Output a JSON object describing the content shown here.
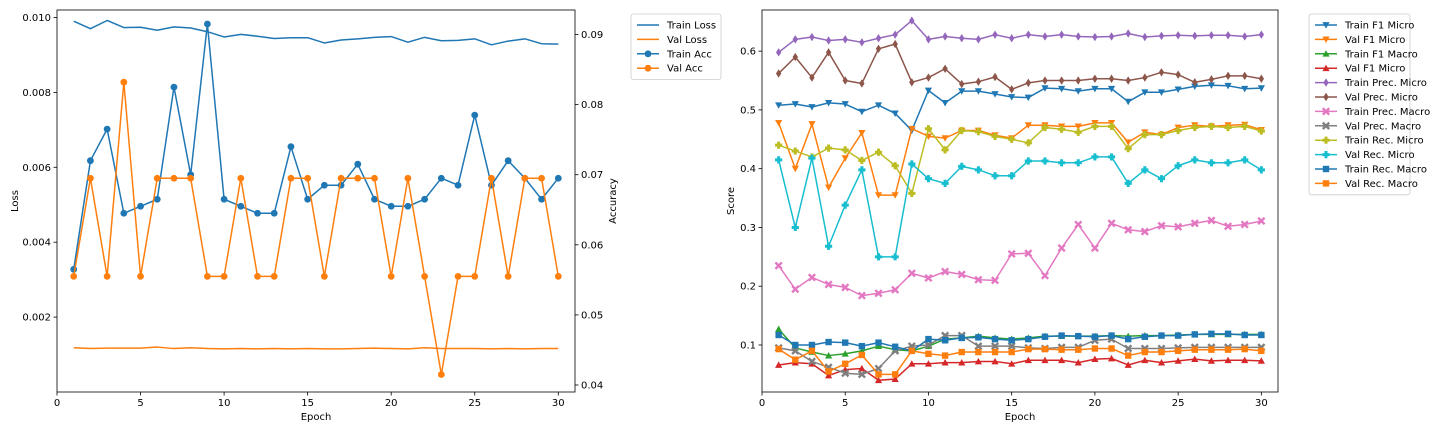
{
  "chart_data": [
    {
      "type": "line",
      "xlabel": "Epoch",
      "ylabel": "Loss",
      "y2label": "Accuracy",
      "xlim": [
        0,
        31
      ],
      "ylim": [
        0,
        0.0102
      ],
      "y2lim": [
        0.039,
        0.0935
      ],
      "xticks": [
        0,
        5,
        10,
        15,
        20,
        25,
        30
      ],
      "yticks": [
        0.002,
        0.004,
        0.006,
        0.008,
        0.01
      ],
      "ytick_labels": [
        "0.002",
        "0.004",
        "0.006",
        "0.008",
        "0.010"
      ],
      "y2ticks": [
        0.04,
        0.05,
        0.06,
        0.07,
        0.08,
        0.09
      ],
      "y2tick_labels": [
        "0.04",
        "0.05",
        "0.06",
        "0.07",
        "0.08",
        "0.09"
      ],
      "grid": false,
      "legend_position": "outside-top-right",
      "x": [
        1,
        2,
        3,
        4,
        5,
        6,
        7,
        8,
        9,
        10,
        11,
        12,
        13,
        14,
        15,
        16,
        17,
        18,
        19,
        20,
        21,
        22,
        23,
        24,
        25,
        26,
        27,
        28,
        29,
        30
      ],
      "series": [
        {
          "name": "Train Loss",
          "axis": "left",
          "marker": "none",
          "color": "#1f77b4",
          "values": [
            0.0099,
            0.0097,
            0.00992,
            0.00973,
            0.00974,
            0.00966,
            0.00975,
            0.00972,
            0.00962,
            0.00948,
            0.00955,
            0.0095,
            0.00944,
            0.00946,
            0.00946,
            0.00932,
            0.0094,
            0.00943,
            0.00947,
            0.00949,
            0.00934,
            0.00947,
            0.00938,
            0.00939,
            0.00943,
            0.00927,
            0.00937,
            0.00943,
            0.0093,
            0.00929
          ]
        },
        {
          "name": "Val Loss",
          "axis": "left",
          "marker": "none",
          "color": "#ff7f0e",
          "values": [
            0.00118,
            0.00116,
            0.00117,
            0.00117,
            0.00117,
            0.0012,
            0.00116,
            0.00118,
            0.00116,
            0.00115,
            0.00116,
            0.00115,
            0.00116,
            0.00115,
            0.00116,
            0.00115,
            0.00115,
            0.00116,
            0.00117,
            0.00116,
            0.00115,
            0.00118,
            0.00116,
            0.00116,
            0.00116,
            0.00115,
            0.00116,
            0.00115,
            0.00116,
            0.00116
          ]
        },
        {
          "name": "Train Acc",
          "axis": "right",
          "marker": "circle",
          "color": "#1f77b4",
          "values": [
            0.0565,
            0.072,
            0.0765,
            0.0645,
            0.0655,
            0.0665,
            0.0825,
            0.07,
            0.0915,
            0.0665,
            0.0655,
            0.0645,
            0.0645,
            0.074,
            0.0665,
            0.0685,
            0.0685,
            0.0715,
            0.0665,
            0.0655,
            0.0655,
            0.0665,
            0.0695,
            0.0685,
            0.0785,
            0.0685,
            0.072,
            0.0695,
            0.0665,
            0.0695
          ]
        },
        {
          "name": "Val Acc",
          "axis": "right",
          "marker": "circle",
          "color": "#ff7f0e",
          "values": [
            0.0555,
            0.0695,
            0.0555,
            0.0832,
            0.0555,
            0.0695,
            0.0695,
            0.0695,
            0.0555,
            0.0555,
            0.0695,
            0.0555,
            0.0555,
            0.0695,
            0.0695,
            0.0555,
            0.0695,
            0.0695,
            0.0695,
            0.0555,
            0.0695,
            0.0555,
            0.0415,
            0.0555,
            0.0555,
            0.0695,
            0.0555,
            0.0695,
            0.0695,
            0.0555
          ]
        }
      ]
    },
    {
      "type": "line",
      "xlabel": "Epoch",
      "ylabel": "Score",
      "xlim": [
        0,
        31
      ],
      "ylim": [
        0.02,
        0.67
      ],
      "xticks": [
        0,
        5,
        10,
        15,
        20,
        25,
        30
      ],
      "yticks": [
        0.1,
        0.2,
        0.3,
        0.4,
        0.5,
        0.6
      ],
      "ytick_labels": [
        "0.1",
        "0.2",
        "0.3",
        "0.4",
        "0.5",
        "0.6"
      ],
      "grid": false,
      "legend_position": "outside-top-right",
      "x": [
        1,
        2,
        3,
        4,
        5,
        6,
        7,
        8,
        9,
        10,
        11,
        12,
        13,
        14,
        15,
        16,
        17,
        18,
        19,
        20,
        21,
        22,
        23,
        24,
        25,
        26,
        27,
        28,
        29,
        30
      ],
      "series": [
        {
          "name": "Train F1 Micro",
          "marker": "triangle-down",
          "color": "#1f77b4",
          "values": [
            0.508,
            0.51,
            0.505,
            0.512,
            0.51,
            0.497,
            0.508,
            0.494,
            0.465,
            0.533,
            0.512,
            0.532,
            0.532,
            0.527,
            0.522,
            0.521,
            0.537,
            0.536,
            0.532,
            0.536,
            0.536,
            0.514,
            0.53,
            0.53,
            0.535,
            0.54,
            0.542,
            0.541,
            0.536,
            0.537
          ]
        },
        {
          "name": "Val F1 Micro",
          "marker": "triangle-down",
          "color": "#ff7f0e",
          "values": [
            0.478,
            0.4,
            0.476,
            0.368,
            0.418,
            0.461,
            0.355,
            0.355,
            0.468,
            0.455,
            0.452,
            0.465,
            0.465,
            0.457,
            0.452,
            0.474,
            0.474,
            0.472,
            0.472,
            0.478,
            0.478,
            0.445,
            0.462,
            0.458,
            0.47,
            0.474,
            0.472,
            0.474,
            0.475,
            0.466
          ]
        },
        {
          "name": "Train F1 Macro",
          "marker": "triangle-up",
          "color": "#2ca02c",
          "values": [
            0.127,
            0.095,
            0.088,
            0.082,
            0.085,
            0.09,
            0.098,
            0.092,
            0.09,
            0.098,
            0.11,
            0.112,
            0.115,
            0.112,
            0.11,
            0.112,
            0.115,
            0.115,
            0.115,
            0.115,
            0.116,
            0.115,
            0.116,
            0.116,
            0.117,
            0.118,
            0.118,
            0.118,
            0.118,
            0.118
          ]
        },
        {
          "name": "Val F1 Micro",
          "marker": "triangle-up",
          "color": "#d62728",
          "values": [
            0.066,
            0.07,
            0.068,
            0.048,
            0.058,
            0.06,
            0.04,
            0.042,
            0.068,
            0.068,
            0.07,
            0.07,
            0.072,
            0.072,
            0.068,
            0.074,
            0.074,
            0.074,
            0.07,
            0.076,
            0.077,
            0.066,
            0.074,
            0.07,
            0.073,
            0.076,
            0.073,
            0.074,
            0.074,
            0.073
          ]
        },
        {
          "name": "Train Prec. Micro",
          "marker": "diamond",
          "color": "#9467bd",
          "values": [
            0.598,
            0.62,
            0.624,
            0.618,
            0.62,
            0.615,
            0.622,
            0.628,
            0.652,
            0.62,
            0.625,
            0.622,
            0.62,
            0.628,
            0.622,
            0.628,
            0.625,
            0.628,
            0.625,
            0.624,
            0.625,
            0.63,
            0.624,
            0.626,
            0.627,
            0.626,
            0.627,
            0.627,
            0.625,
            0.628
          ]
        },
        {
          "name": "Val Prec. Micro",
          "marker": "diamond",
          "color": "#8c564b",
          "values": [
            0.562,
            0.59,
            0.555,
            0.598,
            0.55,
            0.545,
            0.604,
            0.612,
            0.547,
            0.555,
            0.57,
            0.544,
            0.548,
            0.556,
            0.535,
            0.546,
            0.55,
            0.55,
            0.55,
            0.553,
            0.553,
            0.55,
            0.555,
            0.564,
            0.56,
            0.547,
            0.552,
            0.558,
            0.558,
            0.553
          ]
        },
        {
          "name": "Train Prec. Macro",
          "marker": "x",
          "color": "#e377c2",
          "values": [
            0.235,
            0.195,
            0.215,
            0.203,
            0.198,
            0.184,
            0.188,
            0.194,
            0.222,
            0.214,
            0.225,
            0.22,
            0.211,
            0.21,
            0.255,
            0.256,
            0.218,
            0.265,
            0.305,
            0.265,
            0.307,
            0.296,
            0.293,
            0.303,
            0.301,
            0.307,
            0.312,
            0.302,
            0.305,
            0.311
          ]
        },
        {
          "name": "Val Prec. Macro",
          "marker": "x",
          "color": "#7f7f7f",
          "values": [
            0.095,
            0.09,
            0.072,
            0.062,
            0.052,
            0.05,
            0.06,
            0.09,
            0.098,
            0.1,
            0.116,
            0.116,
            0.098,
            0.098,
            0.098,
            0.095,
            0.094,
            0.096,
            0.096,
            0.108,
            0.11,
            0.094,
            0.094,
            0.094,
            0.095,
            0.096,
            0.096,
            0.096,
            0.096,
            0.096
          ]
        },
        {
          "name": "Train Rec. Micro",
          "marker": "plus",
          "color": "#bcbd22",
          "values": [
            0.44,
            0.43,
            0.42,
            0.435,
            0.432,
            0.414,
            0.428,
            0.405,
            0.358,
            0.468,
            0.432,
            0.465,
            0.463,
            0.455,
            0.45,
            0.444,
            0.47,
            0.467,
            0.462,
            0.472,
            0.472,
            0.434,
            0.458,
            0.458,
            0.465,
            0.47,
            0.472,
            0.47,
            0.472,
            0.464
          ]
        },
        {
          "name": "Val Rec. Micro",
          "marker": "plus",
          "color": "#17becf",
          "values": [
            0.415,
            0.3,
            0.418,
            0.268,
            0.338,
            0.398,
            0.25,
            0.25,
            0.408,
            0.383,
            0.375,
            0.404,
            0.398,
            0.388,
            0.388,
            0.413,
            0.413,
            0.41,
            0.41,
            0.42,
            0.42,
            0.375,
            0.398,
            0.383,
            0.405,
            0.415,
            0.41,
            0.41,
            0.415,
            0.398
          ]
        },
        {
          "name": "Train Rec. Macro",
          "marker": "square",
          "color": "#1f77b4",
          "values": [
            0.117,
            0.1,
            0.1,
            0.105,
            0.104,
            0.098,
            0.104,
            0.097,
            0.09,
            0.11,
            0.108,
            0.112,
            0.113,
            0.11,
            0.108,
            0.11,
            0.114,
            0.116,
            0.115,
            0.114,
            0.116,
            0.11,
            0.114,
            0.116,
            0.116,
            0.118,
            0.119,
            0.119,
            0.117,
            0.117
          ]
        },
        {
          "name": "Val Rec. Macro",
          "marker": "square",
          "color": "#ff7f0e",
          "values": [
            0.093,
            0.075,
            0.09,
            0.055,
            0.068,
            0.083,
            0.05,
            0.05,
            0.09,
            0.085,
            0.082,
            0.088,
            0.088,
            0.088,
            0.088,
            0.093,
            0.093,
            0.092,
            0.092,
            0.094,
            0.094,
            0.082,
            0.088,
            0.088,
            0.09,
            0.092,
            0.092,
            0.092,
            0.093,
            0.09
          ]
        }
      ]
    }
  ]
}
